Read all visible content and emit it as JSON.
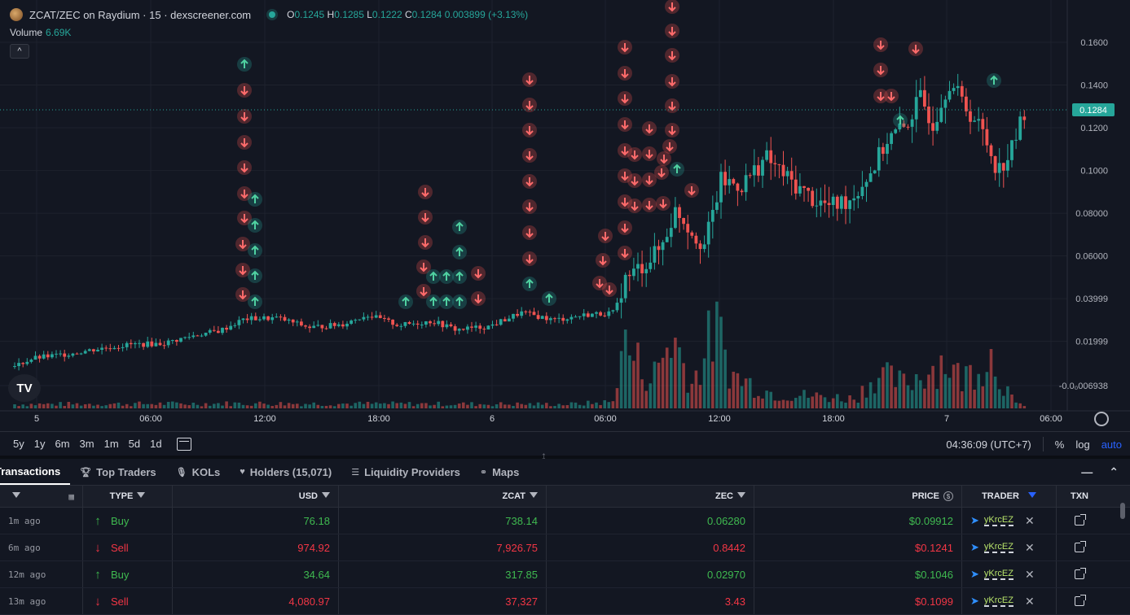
{
  "header": {
    "symbol_title": "ZCAT/ZEC on Raydium · 15 · dexscreener.com",
    "ohlc": {
      "o_label": "O",
      "o": "0.1245",
      "h_label": "H",
      "h": "0.1285",
      "l_label": "L",
      "l": "0.1222",
      "c_label": "C",
      "c": "0.1284",
      "change": "0.003899 (+3.13%)"
    },
    "volume_label": "Volume",
    "volume_value": "6.69K",
    "collapse_glyph": "^"
  },
  "chart_data": {
    "type": "candlestick",
    "price_axis_ticks": [
      "0.1600",
      "0.1400",
      "0.1200",
      "0.1000",
      "0.08000",
      "0.06000",
      "0.03999",
      "0.01999",
      "-0.0₀006938"
    ],
    "price_axis_values": [
      0.16,
      0.14,
      0.12,
      0.1,
      0.08,
      0.06,
      0.03999,
      0.01999,
      -0.0006938
    ],
    "current_price_label": "0.1284",
    "current_price": 0.1284,
    "time_axis_ticks": [
      "5",
      "06:00",
      "12:00",
      "18:00",
      "6",
      "06:00",
      "12:00",
      "18:00",
      "7",
      "06:00"
    ],
    "series_colors": {
      "up": "#26a69a",
      "down": "#ef5350"
    },
    "price_range": [
      -0.0006938,
      0.165
    ],
    "trend": [
      [
        0,
        0.0055
      ],
      [
        40,
        0.012
      ],
      [
        80,
        0.014
      ],
      [
        120,
        0.0165
      ],
      [
        160,
        0.0185
      ],
      [
        200,
        0.019
      ],
      [
        240,
        0.023
      ],
      [
        270,
        0.025
      ],
      [
        300,
        0.0305
      ],
      [
        340,
        0.031
      ],
      [
        380,
        0.0265
      ],
      [
        420,
        0.028
      ],
      [
        450,
        0.0325
      ],
      [
        490,
        0.0275
      ],
      [
        530,
        0.0295
      ],
      [
        560,
        0.0255
      ],
      [
        600,
        0.027
      ],
      [
        640,
        0.0335
      ],
      [
        680,
        0.03
      ],
      [
        720,
        0.0325
      ],
      [
        755,
        0.0335
      ],
      [
        765,
        0.048
      ],
      [
        790,
        0.056
      ],
      [
        810,
        0.063
      ],
      [
        830,
        0.082
      ],
      [
        850,
        0.071
      ],
      [
        865,
        0.065
      ],
      [
        885,
        0.095
      ],
      [
        910,
        0.093
      ],
      [
        940,
        0.106
      ],
      [
        970,
        0.095
      ],
      [
        1000,
        0.086
      ],
      [
        1020,
        0.083
      ],
      [
        1045,
        0.087
      ],
      [
        1070,
        0.1
      ],
      [
        1090,
        0.115
      ],
      [
        1110,
        0.12
      ],
      [
        1130,
        0.134
      ],
      [
        1145,
        0.122
      ],
      [
        1165,
        0.142
      ],
      [
        1185,
        0.13
      ],
      [
        1205,
        0.119
      ],
      [
        1225,
        0.1
      ],
      [
        1240,
        0.108
      ],
      [
        1258,
        0.1284
      ]
    ],
    "volume_profile": [
      [
        0,
        0.05
      ],
      [
        300,
        0.06
      ],
      [
        700,
        0.05
      ],
      [
        755,
        0.08
      ],
      [
        760,
        0.85
      ],
      [
        800,
        0.35
      ],
      [
        825,
        0.9
      ],
      [
        850,
        0.3
      ],
      [
        878,
        1.0
      ],
      [
        900,
        0.4
      ],
      [
        950,
        0.18
      ],
      [
        1050,
        0.12
      ],
      [
        1075,
        0.42
      ],
      [
        1110,
        0.3
      ],
      [
        1160,
        0.6
      ],
      [
        1180,
        0.35
      ],
      [
        1215,
        0.68
      ],
      [
        1245,
        0.05
      ]
    ]
  },
  "timeframes": [
    "5y",
    "1y",
    "6m",
    "3m",
    "1m",
    "5d",
    "1d"
  ],
  "clock": "04:36:09 (UTC+7)",
  "axis_options": {
    "percent": "%",
    "log": "log",
    "auto": "auto"
  },
  "tabs": [
    {
      "label": "Transactions",
      "icon": "list-icon"
    },
    {
      "label": "Top Traders",
      "icon": "trophy-icon"
    },
    {
      "label": "KOLs",
      "icon": "mic-icon"
    },
    {
      "label": "Holders (15,071)",
      "icon": "heart-icon"
    },
    {
      "label": "Liquidity Providers",
      "icon": "layers-icon"
    },
    {
      "label": "Maps",
      "icon": "nodes-icon"
    }
  ],
  "table": {
    "headers": {
      "type": "TYPE",
      "usd": "USD",
      "zcat": "ZCAT",
      "zec": "ZEC",
      "price": "PRICE",
      "trader": "TRADER",
      "txn": "TXN"
    },
    "rows": [
      {
        "date": "1m ago",
        "type": "Buy",
        "usd": "76.18",
        "zcat": "738.14",
        "zec": "0.06280",
        "price": "$0.09912",
        "trader": "yKrcEZ"
      },
      {
        "date": "6m ago",
        "type": "Sell",
        "usd": "974.92",
        "zcat": "7,926.75",
        "zec": "0.8442",
        "price": "$0.1241",
        "trader": "yKrcEZ"
      },
      {
        "date": "12m ago",
        "type": "Buy",
        "usd": "34.64",
        "zcat": "317.85",
        "zec": "0.02970",
        "price": "$0.1046",
        "trader": "yKrcEZ"
      },
      {
        "date": "13m ago",
        "type": "Sell",
        "usd": "4,080.97",
        "zcat": "37,327",
        "zec": "3.43",
        "price": "$0.1099",
        "trader": "yKrcEZ"
      }
    ]
  }
}
